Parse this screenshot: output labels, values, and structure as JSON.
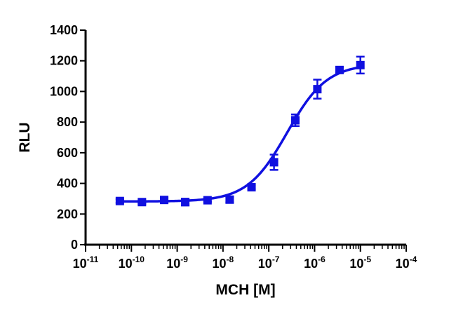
{
  "chart_data": {
    "type": "scatter",
    "title": "",
    "xlabel": "MCH [M]",
    "ylabel": "RLU",
    "x_scale": "log",
    "xlim": [
      1e-11,
      0.0001
    ],
    "ylim": [
      0,
      1400
    ],
    "x_ticks": [
      {
        "base": "10",
        "exp": "-11"
      },
      {
        "base": "10",
        "exp": "-10"
      },
      {
        "base": "10",
        "exp": "-9"
      },
      {
        "base": "10",
        "exp": "-8"
      },
      {
        "base": "10",
        "exp": "-7"
      },
      {
        "base": "10",
        "exp": "-6"
      },
      {
        "base": "10",
        "exp": "-5"
      },
      {
        "base": "10",
        "exp": "-4"
      }
    ],
    "y_ticks": [
      "0",
      "200",
      "400",
      "600",
      "800",
      "1000",
      "1200",
      "1400"
    ],
    "grid": false,
    "legend": "none",
    "color": "#1010e0",
    "series": [
      {
        "marker": "square",
        "points": [
          {
            "x": 5.6e-11,
            "y": 285,
            "err": 12
          },
          {
            "x": 1.7e-10,
            "y": 278,
            "err": 10
          },
          {
            "x": 5.2e-10,
            "y": 292,
            "err": 14
          },
          {
            "x": 1.5e-09,
            "y": 278,
            "err": 22
          },
          {
            "x": 4.6e-09,
            "y": 290,
            "err": 10
          },
          {
            "x": 1.4e-08,
            "y": 294,
            "err": 18
          },
          {
            "x": 4.2e-08,
            "y": 375,
            "err": 12
          },
          {
            "x": 1.3e-07,
            "y": 538,
            "err": 50
          },
          {
            "x": 3.8e-07,
            "y": 812,
            "err": 38
          },
          {
            "x": 1.15e-06,
            "y": 1015,
            "err": 62
          },
          {
            "x": 3.5e-06,
            "y": 1140,
            "err": 18
          },
          {
            "x": 1e-05,
            "y": 1172,
            "err": 55
          }
        ],
        "fit": {
          "bottom": 282,
          "top": 1180,
          "log_ec50": -6.6,
          "hill_slope": 1.0,
          "x_range": [
            5.6e-11,
            1e-05
          ]
        }
      }
    ]
  }
}
